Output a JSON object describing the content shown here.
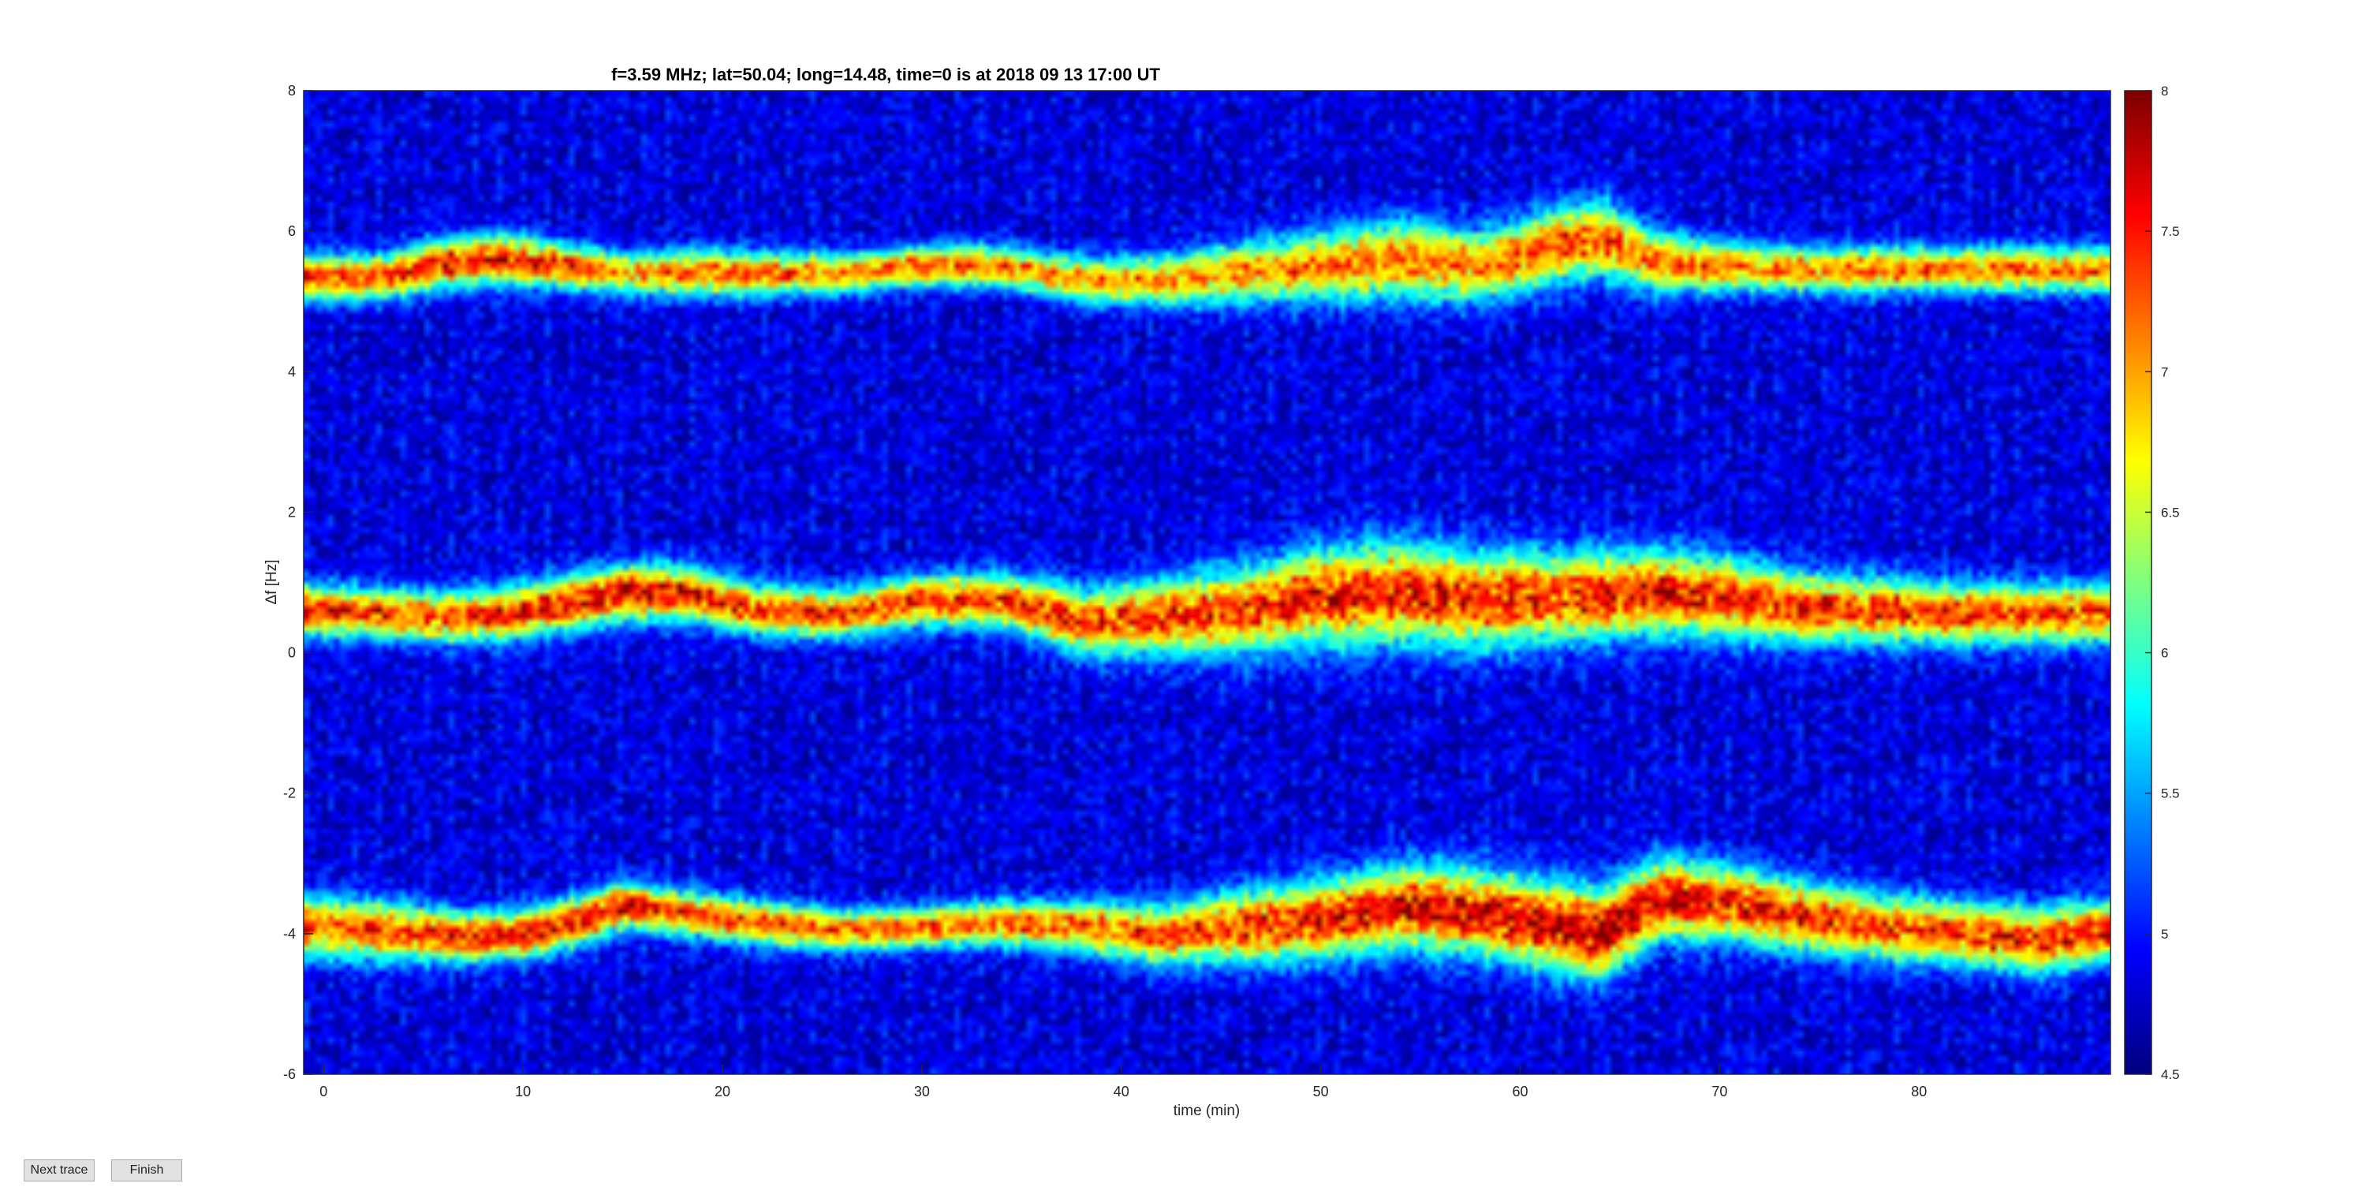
{
  "chart_data": {
    "type": "heatmap",
    "title": "f=3.59 MHz;  lat=50.04; long=14.48, time=0 is at 2018 09 13 17:00 UT",
    "xlabel": "time (min)",
    "ylabel": "Δf [Hz]",
    "xlim": [
      -1,
      89.6
    ],
    "ylim": [
      -6,
      8
    ],
    "x_ticks": [
      "0",
      "10",
      "20",
      "30",
      "40",
      "50",
      "60",
      "70",
      "80"
    ],
    "x_tick_values": [
      0,
      10,
      20,
      30,
      40,
      50,
      60,
      70,
      80
    ],
    "y_ticks": [
      "-6",
      "-4",
      "-2",
      "0",
      "2",
      "4",
      "6",
      "8"
    ],
    "y_tick_values": [
      -6,
      -4,
      -2,
      0,
      2,
      4,
      6,
      8
    ],
    "colorbar": {
      "colormap": "jet",
      "range": [
        4.5,
        8
      ],
      "ticks": [
        "4.5",
        "5",
        "5.5",
        "6",
        "6.5",
        "7",
        "7.5",
        "8"
      ],
      "tick_values": [
        4.5,
        5,
        5.5,
        6,
        6.5,
        7,
        7.5,
        8
      ]
    },
    "background_level": 4.8,
    "series": [
      {
        "x": [
          -1,
          3,
          6,
          9,
          12,
          15,
          18,
          22,
          26,
          30,
          34,
          38,
          42,
          46,
          50,
          54,
          58,
          62,
          64,
          67,
          70,
          74,
          78,
          82,
          86,
          89.6
        ],
        "y": [
          5.35,
          5.35,
          5.55,
          5.6,
          5.5,
          5.4,
          5.4,
          5.4,
          5.4,
          5.5,
          5.5,
          5.3,
          5.3,
          5.4,
          5.5,
          5.6,
          5.5,
          5.8,
          5.9,
          5.55,
          5.5,
          5.45,
          5.45,
          5.45,
          5.45,
          5.45
        ],
        "width": [
          0.45,
          0.45,
          0.5,
          0.5,
          0.45,
          0.4,
          0.45,
          0.45,
          0.4,
          0.4,
          0.4,
          0.45,
          0.5,
          0.6,
          0.7,
          0.8,
          0.7,
          0.75,
          0.75,
          0.6,
          0.5,
          0.45,
          0.45,
          0.45,
          0.45,
          0.45
        ],
        "peak": [
          7.4,
          7.4,
          7.6,
          7.6,
          7.4,
          7.1,
          7.2,
          7.2,
          7.1,
          7.2,
          7.2,
          7.1,
          7.1,
          7.1,
          7.2,
          7.2,
          7.2,
          7.4,
          7.4,
          7.2,
          7.2,
          7.2,
          7.2,
          7.2,
          7.2,
          7.2
        ]
      },
      {
        "x": [
          -1,
          3,
          6,
          9,
          12,
          15,
          18,
          22,
          26,
          30,
          34,
          38,
          42,
          46,
          50,
          54,
          58,
          62,
          66,
          70,
          74,
          78,
          82,
          86,
          89.6
        ],
        "y": [
          0.6,
          0.55,
          0.5,
          0.55,
          0.7,
          0.85,
          0.85,
          0.6,
          0.55,
          0.75,
          0.75,
          0.45,
          0.5,
          0.6,
          0.8,
          0.85,
          0.75,
          0.8,
          0.85,
          0.8,
          0.65,
          0.6,
          0.55,
          0.55,
          0.55
        ],
        "width": [
          0.5,
          0.5,
          0.5,
          0.55,
          0.55,
          0.55,
          0.55,
          0.5,
          0.5,
          0.5,
          0.55,
          0.65,
          0.75,
          0.85,
          0.95,
          1.0,
          0.95,
          0.9,
          0.85,
          0.8,
          0.7,
          0.65,
          0.6,
          0.6,
          0.6
        ],
        "peak": [
          7.5,
          7.4,
          7.4,
          7.5,
          7.6,
          7.7,
          7.6,
          7.4,
          7.4,
          7.5,
          7.4,
          7.4,
          7.5,
          7.5,
          7.6,
          7.6,
          7.5,
          7.5,
          7.6,
          7.6,
          7.5,
          7.5,
          7.4,
          7.4,
          7.4
        ]
      },
      {
        "x": [
          -1,
          3,
          7,
          10,
          13,
          15,
          18,
          22,
          26,
          30,
          34,
          38,
          42,
          46,
          50,
          54,
          58,
          62,
          64,
          67,
          70,
          74,
          78,
          82,
          86,
          89.6
        ],
        "y": [
          -3.9,
          -3.95,
          -4.05,
          -4.0,
          -3.8,
          -3.6,
          -3.7,
          -3.85,
          -3.95,
          -3.9,
          -3.85,
          -3.9,
          -4.0,
          -3.9,
          -3.8,
          -3.6,
          -3.7,
          -3.9,
          -4.0,
          -3.5,
          -3.55,
          -3.75,
          -3.9,
          -4.0,
          -4.1,
          -3.95
        ],
        "width": [
          0.6,
          0.6,
          0.5,
          0.5,
          0.5,
          0.5,
          0.45,
          0.45,
          0.4,
          0.4,
          0.45,
          0.5,
          0.6,
          0.7,
          0.8,
          0.85,
          0.85,
          0.9,
          0.9,
          0.8,
          0.75,
          0.7,
          0.65,
          0.65,
          0.65,
          0.6
        ],
        "peak": [
          7.3,
          7.3,
          7.5,
          7.6,
          7.6,
          7.5,
          7.4,
          7.3,
          7.3,
          7.3,
          7.3,
          7.3,
          7.4,
          7.5,
          7.6,
          7.7,
          7.7,
          7.8,
          7.9,
          7.8,
          7.6,
          7.5,
          7.4,
          7.4,
          7.5,
          7.5
        ]
      }
    ],
    "grid": false
  },
  "controls": {
    "next_label": "Next trace",
    "finish_label": "Finish"
  }
}
